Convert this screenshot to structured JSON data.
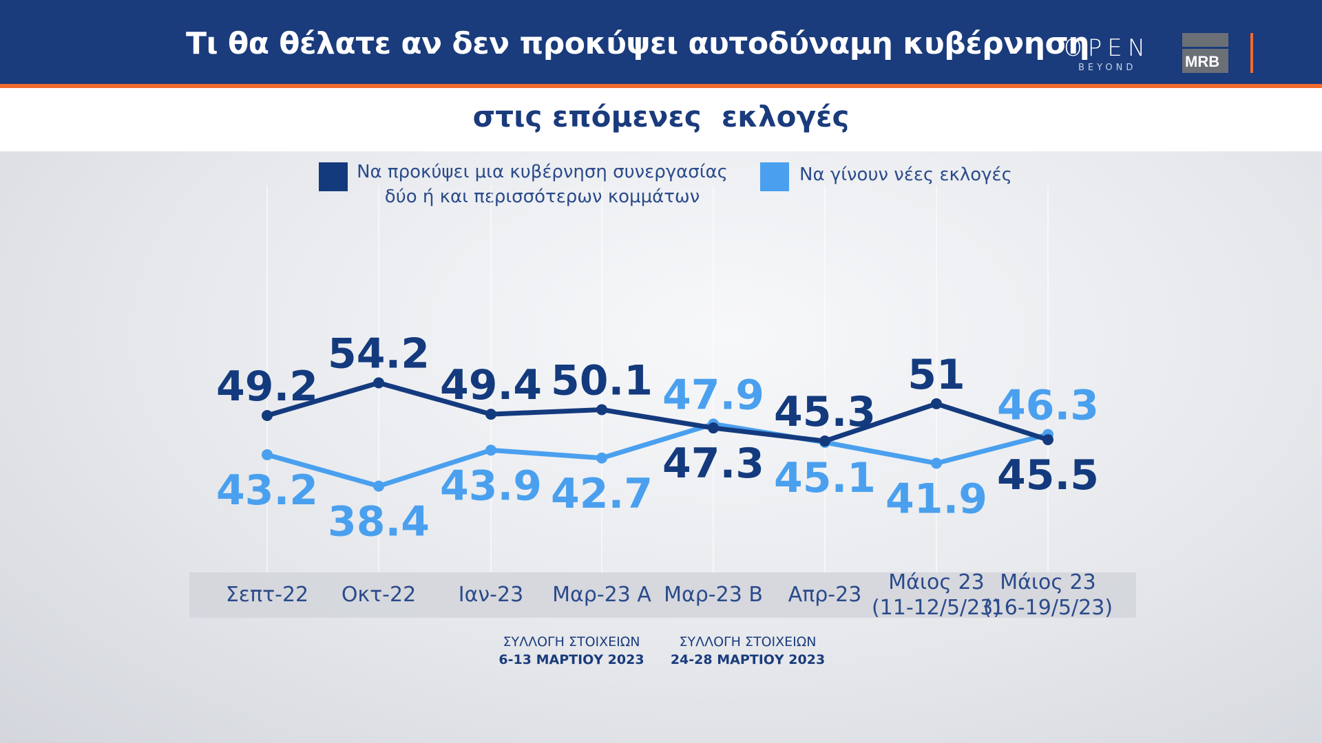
{
  "header": {
    "title": "Τι θα θέλατε αν δεν προκύψει αυτοδύναμη κυβέρνηση",
    "subtitle": "στις επόμενες  εκλογές"
  },
  "logos": {
    "open": "OPEN",
    "beyond": "BEYOND",
    "mrb": "MRB"
  },
  "colors": {
    "dark": "#143a7e",
    "light": "#4aa0ee",
    "header": "#1a3b7c",
    "accent": "#f26a2e"
  },
  "chart_data": {
    "type": "line",
    "title": "Τι θα θέλατε αν δεν προκύψει αυτοδύναμη κυβέρνηση στις επόμενες εκλογές",
    "categories": [
      "Σεπτ-22",
      "Οκτ-22",
      "Ιαν-23",
      "Μαρ-23 Α",
      "Μαρ-23 Β",
      "Απρ-23",
      "Μάιος 23\n(11-12/5/23)",
      "Μάιος 23\n(16-19/5/23)"
    ],
    "series": [
      {
        "name": "Να προκύψει μια κυβέρνηση συνεργασίας δύο ή και περισσότερων κομμάτων",
        "legend_lines": [
          "Να προκύψει μια κυβέρνηση συνεργασίας",
          "δύο ή και περισσότερων κομμάτων"
        ],
        "values": [
          49.2,
          54.2,
          49.4,
          50.1,
          47.3,
          45.3,
          51,
          45.5
        ],
        "labels": [
          "49.2",
          "54.2",
          "49.4",
          "50.1",
          "47.3",
          "45.3",
          "51",
          "45.5"
        ]
      },
      {
        "name": "Να γίνουν νέες εκλογές",
        "legend_lines": [
          "Να γίνουν νέες εκλογές"
        ],
        "values": [
          43.2,
          38.4,
          43.9,
          42.7,
          47.9,
          45.1,
          41.9,
          46.3
        ],
        "labels": [
          "43.2",
          "38.4",
          "43.9",
          "42.7",
          "47.9",
          "45.1",
          "41.9",
          "46.3"
        ]
      }
    ],
    "xlabel": "",
    "ylabel": "",
    "grid": true
  },
  "notes": [
    {
      "line1": "ΣΥΛΛΟΓΗ ΣΤΟΙΧΕΙΩΝ",
      "line2": "6-13 ΜΑΡΤΙΟΥ 2023"
    },
    {
      "line1": "ΣΥΛΛΟΓΗ ΣΤΟΙΧΕΙΩΝ",
      "line2": "24-28 ΜΑΡΤΙΟΥ 2023"
    }
  ]
}
